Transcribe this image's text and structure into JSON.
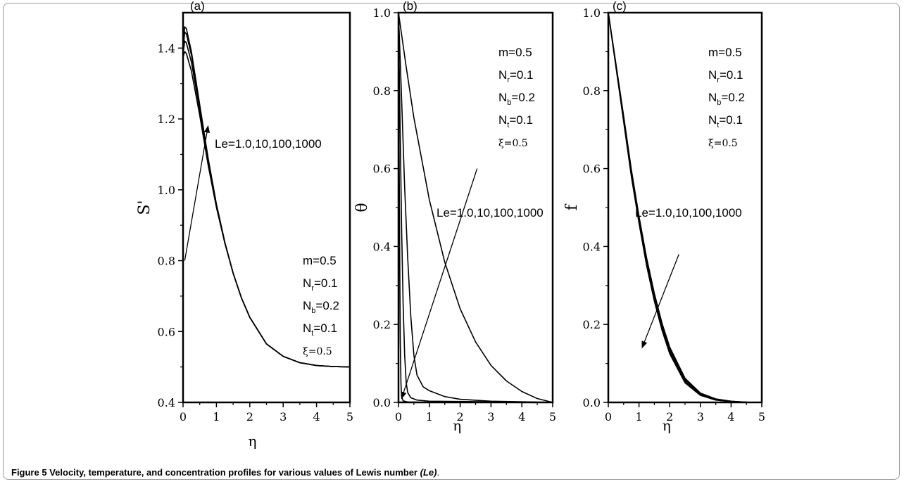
{
  "caption": {
    "label": "Figure 5",
    "text": "Velocity, temperature, and concentration profiles for various values of Lewis number",
    "symbol": "(Le)",
    "end": "."
  },
  "chart_data": [
    {
      "panel": "(a)",
      "type": "line",
      "xlabel": "η",
      "ylabel": "S'",
      "xlim": [
        0,
        5
      ],
      "ylim": [
        0.4,
        1.5
      ],
      "xticks": [
        0,
        1,
        2,
        3,
        4,
        5
      ],
      "yticks": [
        0.4,
        0.6,
        0.8,
        1.0,
        1.2,
        1.4
      ],
      "ytick_labels": [
        "0.4",
        "0.6",
        "0.8",
        "1.0",
        "1.2",
        "1.4"
      ],
      "x": [
        0,
        0.05,
        0.1,
        0.25,
        0.5,
        0.75,
        1.0,
        1.25,
        1.5,
        1.75,
        2.0,
        2.5,
        3.0,
        3.5,
        4.0,
        4.5,
        5.0
      ],
      "series": [
        {
          "values": [
            1.375,
            1.39,
            1.385,
            1.335,
            1.21,
            1.07,
            0.95,
            0.85,
            0.765,
            0.695,
            0.64,
            0.565,
            0.53,
            0.512,
            0.504,
            0.501,
            0.5
          ]
        },
        {
          "values": [
            1.385,
            1.42,
            1.415,
            1.36,
            1.225,
            1.08,
            0.955,
            0.85,
            0.765,
            0.695,
            0.64,
            0.565,
            0.53,
            0.512,
            0.504,
            0.501,
            0.5
          ]
        },
        {
          "values": [
            1.395,
            1.445,
            1.44,
            1.38,
            1.235,
            1.085,
            0.958,
            0.852,
            0.765,
            0.695,
            0.64,
            0.565,
            0.53,
            0.512,
            0.504,
            0.501,
            0.5
          ]
        },
        {
          "values": [
            1.4,
            1.46,
            1.455,
            1.39,
            1.24,
            1.09,
            0.96,
            0.853,
            0.765,
            0.695,
            0.64,
            0.565,
            0.53,
            0.512,
            0.504,
            0.501,
            0.5
          ]
        }
      ],
      "annotation": "Le=1.0,10,100,1000",
      "arrow": {
        "from": [
          0.05,
          0.8
        ],
        "to": [
          0.75,
          1.18
        ]
      },
      "params": [
        {
          "base": "m=0.5",
          "sub": "",
          "tail": ""
        },
        {
          "base": "N",
          "sub": "r",
          "tail": "=0.1"
        },
        {
          "base": "N",
          "sub": "b",
          "tail": "=0.2"
        },
        {
          "base": "N",
          "sub": "t",
          "tail": "=0.1"
        },
        {
          "base": "ξ=0.5",
          "sub": "",
          "tail": ""
        }
      ]
    },
    {
      "panel": "(b)",
      "type": "line",
      "xlabel": "η",
      "ylabel": "θ",
      "xlim": [
        0,
        5
      ],
      "ylim": [
        0,
        1
      ],
      "xticks": [
        0,
        1,
        2,
        3,
        4,
        5
      ],
      "yticks": [
        0.0,
        0.2,
        0.4,
        0.6,
        0.8,
        1.0
      ],
      "ytick_labels": [
        "0.0",
        "0.2",
        "0.4",
        "0.6",
        "0.8",
        "1.0"
      ],
      "series": [
        {
          "x": [
            0,
            0.25,
            0.5,
            1.0,
            1.5,
            2.0,
            2.5,
            3.0,
            3.5,
            4.0,
            4.5,
            5.0
          ],
          "values": [
            1.0,
            0.86,
            0.73,
            0.52,
            0.36,
            0.24,
            0.155,
            0.095,
            0.055,
            0.028,
            0.01,
            0.0
          ]
        },
        {
          "x": [
            0,
            0.1,
            0.2,
            0.3,
            0.4,
            0.5,
            0.6,
            0.8,
            1.0,
            1.5,
            2.0,
            3.0,
            5.0
          ],
          "values": [
            1.0,
            0.78,
            0.55,
            0.37,
            0.22,
            0.12,
            0.07,
            0.04,
            0.03,
            0.015,
            0.008,
            0.003,
            0.0
          ]
        },
        {
          "x": [
            0,
            0.05,
            0.1,
            0.15,
            0.2,
            0.25,
            0.3,
            0.4,
            0.6,
            1.0,
            5.0
          ],
          "values": [
            1.0,
            0.72,
            0.45,
            0.25,
            0.12,
            0.05,
            0.025,
            0.012,
            0.006,
            0.003,
            0.0
          ]
        },
        {
          "x": [
            0,
            0.02,
            0.04,
            0.06,
            0.08,
            0.1,
            0.15,
            0.3,
            1.0,
            5.0
          ],
          "values": [
            1.0,
            0.65,
            0.35,
            0.15,
            0.05,
            0.015,
            0.004,
            0.001,
            0.0,
            0.0
          ]
        }
      ],
      "annotation": "Le=1.0,10,100,1000",
      "arrow": {
        "from": [
          2.55,
          0.6
        ],
        "to": [
          0.1,
          0.01
        ]
      },
      "params": [
        {
          "base": "m=0.5",
          "sub": "",
          "tail": ""
        },
        {
          "base": "N",
          "sub": "r",
          "tail": "=0.1"
        },
        {
          "base": "N",
          "sub": "b",
          "tail": "=0.2"
        },
        {
          "base": "N",
          "sub": "t",
          "tail": "=0.1"
        },
        {
          "base": "ξ=0.5",
          "sub": "",
          "tail": ""
        }
      ]
    },
    {
      "panel": "(c)",
      "type": "line",
      "xlabel": "η",
      "ylabel": "f",
      "xlim": [
        0,
        5
      ],
      "ylim": [
        0,
        1
      ],
      "xticks": [
        0,
        1,
        2,
        3,
        4,
        5
      ],
      "yticks": [
        0.0,
        0.2,
        0.4,
        0.6,
        0.8,
        1.0
      ],
      "ytick_labels": [
        "0.0",
        "0.2",
        "0.4",
        "0.6",
        "0.8",
        "1.0"
      ],
      "x": [
        0,
        0.25,
        0.5,
        0.75,
        1.0,
        1.25,
        1.5,
        1.75,
        2.0,
        2.5,
        3.0,
        3.5,
        4.0,
        4.5,
        5.0
      ],
      "series": [
        {
          "values": [
            1.0,
            0.86,
            0.72,
            0.58,
            0.46,
            0.35,
            0.26,
            0.185,
            0.125,
            0.05,
            0.018,
            0.006,
            0.002,
            0.0005,
            0.0
          ]
        },
        {
          "values": [
            1.0,
            0.862,
            0.725,
            0.585,
            0.465,
            0.357,
            0.266,
            0.19,
            0.13,
            0.054,
            0.02,
            0.007,
            0.002,
            0.0005,
            0.0
          ]
        },
        {
          "values": [
            1.0,
            0.865,
            0.73,
            0.592,
            0.472,
            0.364,
            0.273,
            0.197,
            0.136,
            0.058,
            0.022,
            0.008,
            0.0025,
            0.0005,
            0.0
          ]
        },
        {
          "values": [
            1.0,
            0.868,
            0.735,
            0.598,
            0.478,
            0.37,
            0.28,
            0.203,
            0.142,
            0.062,
            0.024,
            0.009,
            0.003,
            0.0005,
            0.0
          ]
        }
      ],
      "annotation": "Le=1.0,10,100,1000",
      "arrow": {
        "from": [
          2.3,
          0.38
        ],
        "to": [
          1.1,
          0.14
        ]
      },
      "params": [
        {
          "base": "m=0.5",
          "sub": "",
          "tail": ""
        },
        {
          "base": "N",
          "sub": "r",
          "tail": "=0.1"
        },
        {
          "base": "N",
          "sub": "b",
          "tail": "=0.2"
        },
        {
          "base": "N",
          "sub": "t",
          "tail": "=0.1"
        },
        {
          "base": "ξ=0.5",
          "sub": "",
          "tail": ""
        }
      ]
    }
  ]
}
